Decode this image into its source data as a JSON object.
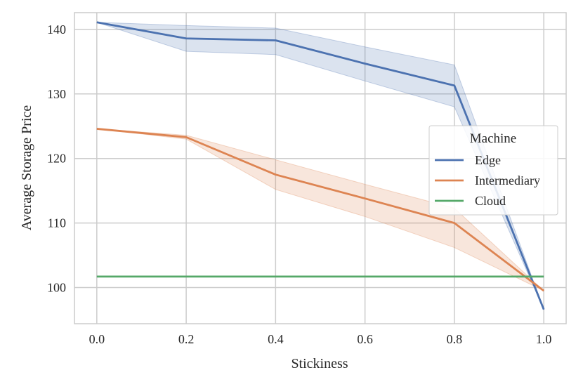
{
  "chart_data": {
    "type": "line",
    "title": "",
    "xlabel": "Stickiness",
    "ylabel": "Average Storage Price",
    "xlim": [
      -0.05,
      1.05
    ],
    "ylim": [
      94.4,
      142.6
    ],
    "xticks": [
      0.0,
      0.2,
      0.4,
      0.6,
      0.8,
      1.0
    ],
    "xtick_labels": [
      "0.0",
      "0.2",
      "0.4",
      "0.6",
      "0.8",
      "1.0"
    ],
    "yticks": [
      100,
      110,
      120,
      130,
      140
    ],
    "ytick_labels": [
      "100",
      "110",
      "120",
      "130",
      "140"
    ],
    "grid": true,
    "legend": {
      "title": "Machine",
      "position": "center-right"
    },
    "x": [
      0.0,
      0.2,
      0.4,
      0.6,
      0.8,
      1.0
    ],
    "series": [
      {
        "name": "Edge",
        "color": "#4c72b0",
        "values": [
          141.1,
          138.6,
          138.3,
          134.7,
          131.3,
          96.6
        ],
        "ci_low": [
          141.1,
          136.6,
          136.1,
          132.0,
          128.0,
          96.6
        ],
        "ci_high": [
          141.1,
          140.6,
          140.2,
          137.3,
          134.5,
          96.6
        ]
      },
      {
        "name": "Intermediary",
        "color": "#dd8452",
        "values": [
          124.6,
          123.3,
          117.5,
          113.8,
          110.0,
          99.5
        ],
        "ci_low": [
          124.6,
          123.0,
          115.2,
          111.0,
          106.2,
          99.5
        ],
        "ci_high": [
          124.6,
          123.6,
          119.8,
          116.0,
          112.3,
          99.5
        ]
      },
      {
        "name": "Cloud",
        "color": "#55a868",
        "values": [
          101.7,
          101.7,
          101.7,
          101.7,
          101.7,
          101.7
        ]
      }
    ]
  }
}
